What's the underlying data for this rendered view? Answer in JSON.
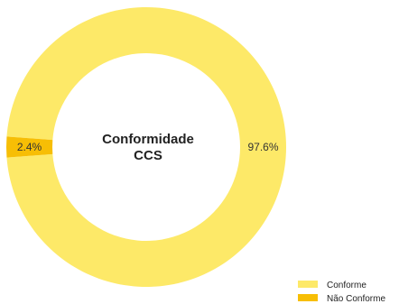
{
  "chart_data": {
    "type": "pie",
    "title": "",
    "center_label": [
      "Conformidade",
      "CCS"
    ],
    "categories": [
      "Conforme",
      "Não Conforme"
    ],
    "values": [
      97.6,
      2.4
    ],
    "labels": [
      "97.6%",
      "2.4%"
    ],
    "colors": [
      "#FDE968",
      "#F7BE05"
    ],
    "legend_position": "bottom-right"
  }
}
